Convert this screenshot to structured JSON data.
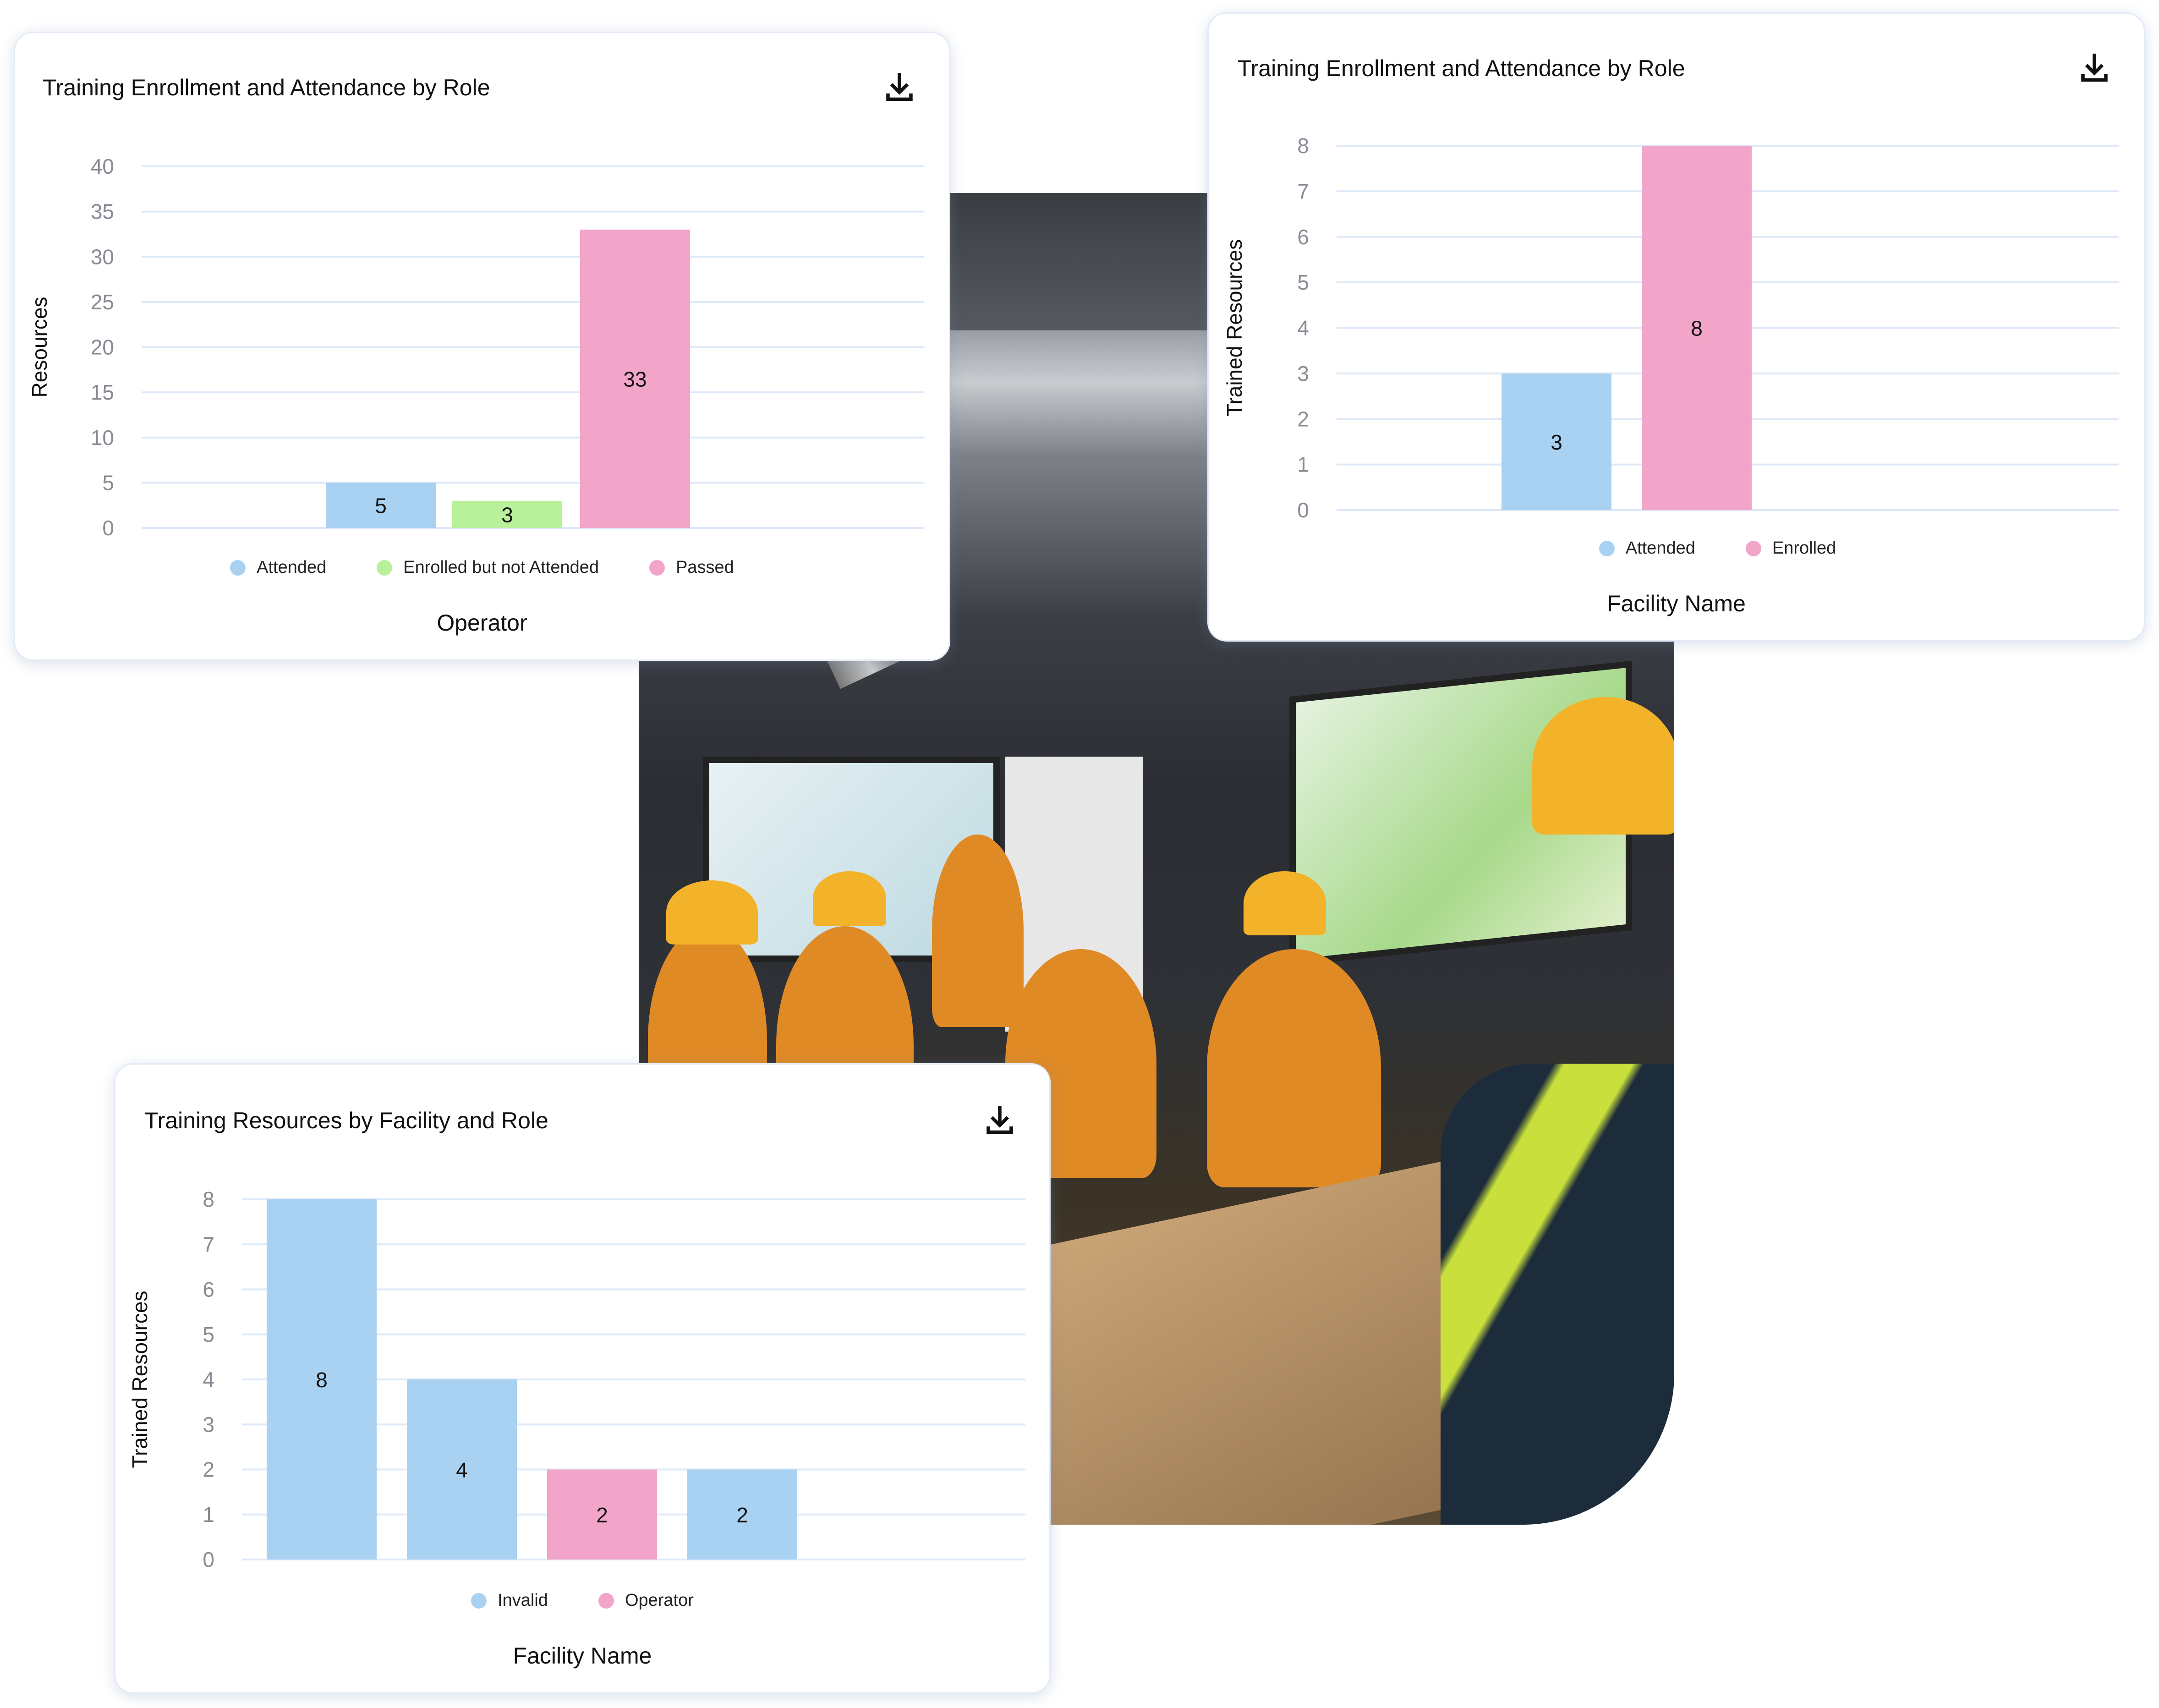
{
  "colors": {
    "blue": "#a8d1f2",
    "green": "#b9f19a",
    "pink": "#f2a5c8",
    "grid": "#dde8f8",
    "tick": "#8a8a95"
  },
  "photo": {
    "description_icon": "classroom-training-photo"
  },
  "chart_data": [
    {
      "type": "bar",
      "title": "Training Enrollment and Attendance by Role",
      "xlabel": "Operator",
      "ylabel": "Resources",
      "ylim": [
        0,
        40
      ],
      "yticks": [
        0,
        5,
        10,
        15,
        20,
        25,
        30,
        35,
        40
      ],
      "grid": true,
      "legend_position": "bottom",
      "series": [
        {
          "name": "Attended",
          "color": "#a8d1f2",
          "values": [
            5
          ]
        },
        {
          "name": "Enrolled but not Attended",
          "color": "#b9f19a",
          "values": [
            3
          ]
        },
        {
          "name": "Passed",
          "color": "#f2a5c8",
          "values": [
            33
          ]
        }
      ],
      "download_icon": "download-icon"
    },
    {
      "type": "bar",
      "title": "Training Enrollment and Attendance by Role",
      "xlabel": "Facility Name",
      "ylabel": "Trained Resources",
      "ylim": [
        0,
        8
      ],
      "yticks": [
        0,
        1,
        2,
        3,
        4,
        5,
        6,
        7,
        8
      ],
      "grid": true,
      "legend_position": "bottom",
      "series": [
        {
          "name": "Attended",
          "color": "#a8d1f2",
          "values": [
            3
          ]
        },
        {
          "name": "Enrolled",
          "color": "#f2a5c8",
          "values": [
            8
          ]
        }
      ],
      "download_icon": "download-icon"
    },
    {
      "type": "bar",
      "title": "Training Resources by Facility and Role",
      "xlabel": "Facility Name",
      "ylabel": "Trained Resources",
      "ylim": [
        0,
        8
      ],
      "yticks": [
        0,
        1,
        2,
        3,
        4,
        5,
        6,
        7,
        8
      ],
      "grid": true,
      "legend_position": "bottom",
      "legend": [
        {
          "name": "Invalid",
          "color": "#a8d1f2"
        },
        {
          "name": "Operator",
          "color": "#f2a5c8"
        }
      ],
      "bars": [
        {
          "series": "Invalid",
          "value": 8
        },
        {
          "series": "Invalid",
          "value": 4
        },
        {
          "series": "Operator",
          "value": 2
        },
        {
          "series": "Invalid",
          "value": 2
        }
      ],
      "download_icon": "download-icon"
    }
  ]
}
